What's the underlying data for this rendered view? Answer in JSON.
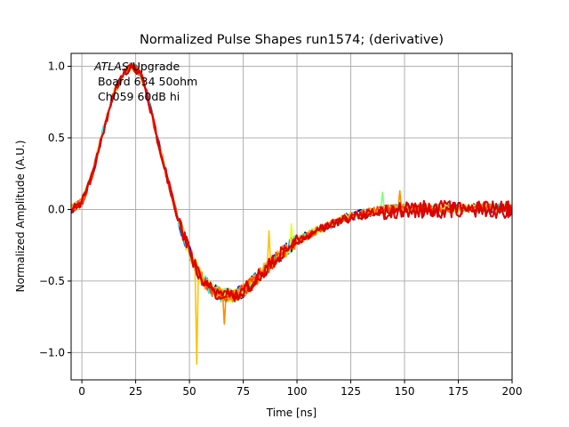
{
  "chart_data": {
    "type": "line",
    "title": "Normalized Pulse Shapes run1574; (derivative)",
    "xlabel": "Time [ns]",
    "ylabel": "Normalized Amplitude (A.U.)",
    "xlim": [
      -5,
      200
    ],
    "ylim": [
      -1.19,
      1.09
    ],
    "xticks": [
      0,
      25,
      50,
      75,
      100,
      125,
      150,
      175,
      200
    ],
    "xtick_labels": [
      "0",
      "25",
      "50",
      "75",
      "100",
      "125",
      "150",
      "175",
      "200"
    ],
    "yticks": [
      1.0,
      0.5,
      0.0,
      -0.5,
      -1.0
    ],
    "ytick_labels": [
      "1.0",
      "0.5",
      "0.0",
      "−0.5",
      "−1.0"
    ],
    "grid": true,
    "annotation": {
      "lines": [
        "ATLAS Upgrade",
        " Board 634 50ohm",
        " Ch059 60dB hi"
      ],
      "italic_prefix": "ATLAS"
    },
    "base_shape": {
      "x": [
        -5,
        0,
        5,
        10,
        15,
        20,
        23,
        27,
        30,
        35,
        40,
        45,
        50,
        55,
        60,
        65,
        70,
        75,
        80,
        85,
        90,
        95,
        100,
        110,
        120,
        130,
        140,
        150,
        160,
        170,
        180,
        190,
        200
      ],
      "y": [
        0.0,
        0.05,
        0.25,
        0.55,
        0.82,
        0.96,
        1.0,
        0.96,
        0.82,
        0.5,
        0.2,
        -0.08,
        -0.3,
        -0.47,
        -0.56,
        -0.6,
        -0.6,
        -0.57,
        -0.5,
        -0.42,
        -0.35,
        -0.28,
        -0.22,
        -0.14,
        -0.08,
        -0.04,
        -0.01,
        0.0,
        0.0,
        0.0,
        0.0,
        0.0,
        0.0
      ]
    },
    "series": [
      {
        "name": "trace-1",
        "color": "#00007f"
      },
      {
        "name": "trace-2",
        "color": "#0000ff"
      },
      {
        "name": "trace-3",
        "color": "#0080ff"
      },
      {
        "name": "trace-4",
        "color": "#15ffe1"
      },
      {
        "name": "trace-5",
        "color": "#7dff7a"
      },
      {
        "name": "trace-6",
        "color": "#e4ff13"
      },
      {
        "name": "trace-7",
        "color": "#ffc400"
      },
      {
        "name": "trace-8",
        "color": "#ff8c00"
      },
      {
        "name": "trace-9",
        "color": "#ff4800"
      },
      {
        "name": "trace-10",
        "color": "#d10000"
      },
      {
        "name": "trace-11",
        "color": "#e00000"
      }
    ],
    "spikes": [
      {
        "series": 6,
        "x": 53,
        "y": -1.08
      },
      {
        "series": 6,
        "x": 87,
        "y": -0.15
      },
      {
        "series": 5,
        "x": 97,
        "y": -0.1
      },
      {
        "series": 4,
        "x": 140,
        "y": 0.12
      },
      {
        "series": 7,
        "x": 148,
        "y": 0.13
      },
      {
        "series": 7,
        "x": 66,
        "y": -0.8
      }
    ]
  }
}
